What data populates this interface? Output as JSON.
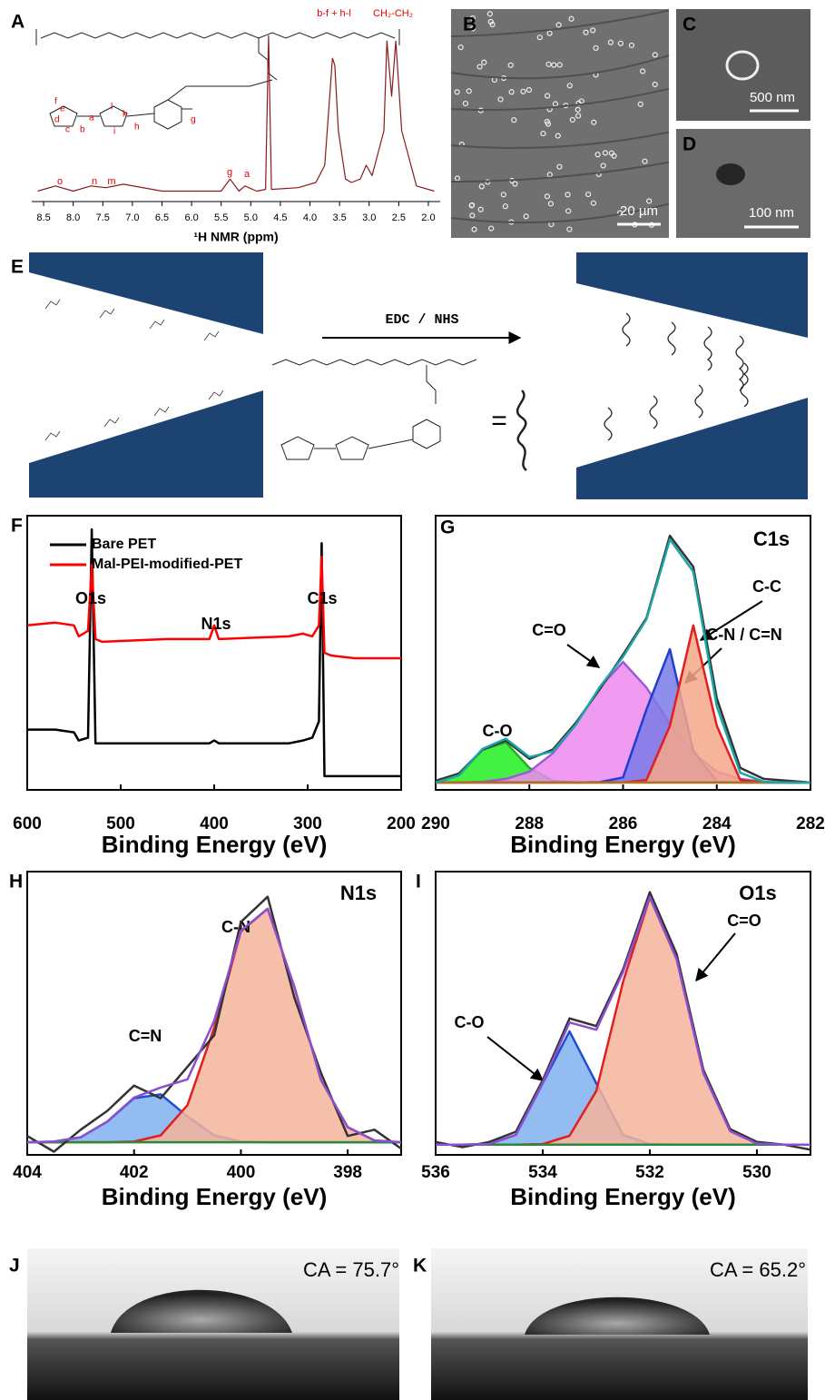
{
  "panel_labels": [
    "A",
    "B",
    "C",
    "D",
    "E",
    "F",
    "G",
    "H",
    "I",
    "J",
    "K"
  ],
  "nmr_structure_labels": [
    "e",
    "d",
    "c",
    "b",
    "a",
    "l",
    "k",
    "i",
    "h",
    "g",
    "f"
  ],
  "micrographs": {
    "scale_bars": [
      "20 µm",
      "500 nm",
      "100 nm"
    ]
  },
  "scheme": {
    "reagent": "EDC / NHS",
    "equals": "="
  },
  "contact_angles": [
    "CA = 75.7°",
    "CA = 65.2°"
  ],
  "chart_data": [
    {
      "type": "line",
      "xlabel": "¹H NMR (ppm)",
      "xlim": [
        8.7,
        1.8
      ],
      "xticks": [
        8.5,
        {
          "value": 8,
          "label": "8.0"
        },
        7.5,
        {
          "value": 7,
          "label": "7.0"
        },
        6.5,
        {
          "value": 6,
          "label": "6.0"
        },
        5.5,
        {
          "value": 5,
          "label": "5.0"
        },
        4.5,
        {
          "value": 4,
          "label": "4.0"
        },
        3.5,
        {
          "value": 3,
          "label": "3.0"
        },
        2.5,
        {
          "value": 2,
          "label": "2.0"
        }
      ],
      "ylim": [
        0,
        100
      ],
      "x": [
        8.6,
        8.3,
        8.0,
        7.7,
        7.45,
        7.15,
        6.5,
        5.5,
        5.35,
        5.2,
        5.1,
        4.9,
        4.75,
        4.7,
        4.65,
        4.2,
        3.9,
        3.75,
        3.62,
        3.58,
        3.52,
        3.4,
        3.3,
        3.15,
        3.05,
        2.95,
        2.75,
        2.7,
        2.62,
        2.55,
        2.45,
        2.2,
        1.9
      ],
      "series": [
        {
          "color": "#8b1a1a",
          "values": [
            5,
            8,
            5,
            8,
            7,
            9,
            5,
            5,
            12,
            5,
            8,
            5,
            6,
            95,
            6,
            7,
            10,
            20,
            82,
            78,
            40,
            12,
            10,
            12,
            20,
            14,
            40,
            92,
            60,
            92,
            40,
            8,
            5
          ]
        }
      ],
      "annotations": [
        "o",
        "n",
        "m",
        "g",
        "a",
        "b-f + h-l",
        "CH₂-CH₂"
      ]
    },
    {
      "type": "line",
      "xlabel": "Binding Energy (eV)",
      "xlim": [
        600,
        200
      ],
      "xticks": [
        600,
        500,
        400,
        300,
        200
      ],
      "ylim": [
        0,
        100
      ],
      "x": [
        600,
        570,
        550,
        545,
        535,
        531,
        527,
        520,
        450,
        405,
        400,
        395,
        320,
        305,
        295,
        288,
        285,
        282,
        275,
        250,
        200
      ],
      "series": [
        {
          "name": "Bare PET",
          "color": "#000000",
          "values": [
            22,
            22,
            21,
            18,
            19,
            95,
            17,
            17,
            17,
            17,
            18,
            17,
            17,
            18,
            19,
            25,
            90,
            5,
            5,
            5,
            5
          ]
        },
        {
          "name": "Mal-PEI-modified-PET",
          "color": "#ff0000",
          "values": [
            60,
            61,
            60,
            56,
            58,
            82,
            55,
            54,
            55,
            55,
            60,
            55,
            56,
            57,
            56,
            60,
            85,
            50,
            49,
            48,
            48
          ]
        }
      ],
      "annotations": [
        "O1s",
        "N1s",
        "C1s"
      ]
    },
    {
      "type": "line",
      "title": "C1s",
      "xlabel": "Binding Energy (eV)",
      "xlim": [
        290,
        282
      ],
      "xticks": [
        290,
        288,
        286,
        284,
        282
      ],
      "ylim": [
        0,
        75
      ],
      "x": [
        290,
        289.5,
        289,
        288.5,
        288,
        287.5,
        287,
        286.5,
        286,
        285.5,
        285,
        284.5,
        284,
        283.5,
        283,
        282.5,
        282
      ],
      "series": [
        {
          "name": "C-O",
          "color": "#20b020",
          "fill": "#22ee22",
          "values": [
            2,
            4,
            11,
            13,
            6,
            2.5,
            2,
            2,
            2,
            2,
            2,
            2,
            2,
            2,
            2,
            2,
            2
          ]
        },
        {
          "name": "C=O",
          "color": "#9c5bd6",
          "fill": "#ee88ee",
          "values": [
            2,
            2,
            2.2,
            3,
            5,
            10,
            18,
            28,
            35,
            28,
            18,
            10,
            5,
            3,
            2.2,
            2,
            2
          ]
        },
        {
          "name": "C-N / C=N",
          "color": "#1f3fcf",
          "fill": "#7a7ae8",
          "values": [
            2,
            2,
            2,
            2,
            2,
            2,
            2,
            2.1,
            3.4,
            22,
            38.5,
            10.7,
            2.3,
            2,
            2,
            2,
            2
          ]
        },
        {
          "name": "C-C",
          "color": "#e02020",
          "fill": "#f5a78a",
          "values": [
            2,
            2,
            2,
            2,
            2,
            2,
            2,
            2,
            2,
            2.7,
            17.5,
            45,
            17.5,
            2.7,
            2,
            2,
            2
          ]
        },
        {
          "color": "#b07020",
          "values": [
            2,
            2,
            2,
            2,
            2,
            2,
            2,
            2,
            2,
            2,
            2,
            2,
            2,
            2,
            2,
            2,
            2
          ]
        },
        {
          "color": "#333333",
          "values": [
            2.5,
            4.5,
            11,
            13.5,
            8.5,
            11,
            18.5,
            27.5,
            37,
            47,
            69.5,
            61,
            25,
            6,
            3,
            2.5,
            2
          ]
        },
        {
          "color": "#1aa6a6",
          "values": [
            2,
            4,
            11.2,
            14,
            9,
            10.5,
            18,
            28.1,
            36.4,
            46.7,
            68.5,
            59.7,
            22.8,
            4.7,
            2.2,
            2,
            2
          ]
        }
      ]
    },
    {
      "type": "line",
      "title": "N1s",
      "xlabel": "Binding Energy (eV)",
      "xlim": [
        404,
        397
      ],
      "xticks": [
        404,
        402,
        400,
        398
      ],
      "ylim": [
        0,
        45
      ],
      "x": [
        404,
        403.5,
        403,
        402.5,
        402,
        401.5,
        401,
        400.5,
        400,
        399.5,
        399,
        398.5,
        398,
        397.5,
        397
      ],
      "series": [
        {
          "name": "C=N",
          "color": "#1f4fcf",
          "fill": "#7fb0f0",
          "values": [
            2,
            2.1,
            2.8,
            5.3,
            9,
            9.6,
            6.1,
            3.1,
            2.1,
            2,
            2,
            2,
            2,
            2,
            2
          ]
        },
        {
          "name": "C-N",
          "color": "#e02020",
          "fill": "#f5b49a",
          "values": [
            2,
            2,
            2,
            2,
            2.1,
            3.1,
            7.9,
            20.2,
            35.5,
            39.1,
            26.7,
            11.9,
            4.4,
            2.3,
            2
          ]
        },
        {
          "color": "#2a8a3a",
          "values": [
            2,
            2,
            2,
            2,
            2,
            2,
            2,
            2,
            2,
            2,
            2,
            2,
            2,
            2,
            2
          ]
        },
        {
          "color": "#333333",
          "values": [
            3,
            0.5,
            4,
            7,
            11,
            9,
            14,
            19,
            37,
            41,
            25,
            13,
            3,
            4,
            1
          ]
        },
        {
          "color": "#8b4fd0",
          "values": [
            2,
            2.1,
            2.8,
            5.3,
            9.1,
            10.7,
            12,
            21.3,
            35.6,
            39.1,
            26.7,
            11.9,
            4.4,
            2.3,
            2
          ]
        }
      ]
    },
    {
      "type": "line",
      "title": "O1s",
      "xlabel": "Binding Energy (eV)",
      "xlim": [
        536,
        529
      ],
      "xticks": [
        536,
        534,
        532,
        530
      ],
      "ylim": [
        0,
        55
      ],
      "x": [
        536,
        535.5,
        535,
        534.5,
        534,
        533.5,
        533,
        532.5,
        532,
        531.5,
        531,
        530.5,
        530,
        529.5,
        529
      ],
      "series": [
        {
          "name": "C-O",
          "color": "#1f4fcf",
          "fill": "#7fb0f0",
          "values": [
            2,
            2,
            2.1,
            3.9,
            13.9,
            24,
            13.9,
            3.9,
            2.1,
            2,
            2,
            2,
            2,
            2,
            2
          ]
        },
        {
          "name": "C=O",
          "color": "#e02020",
          "fill": "#f5b49a",
          "values": [
            2,
            2,
            2,
            2,
            2.1,
            3.7,
            12.4,
            33.6,
            50,
            38,
            15.9,
            4.6,
            2.2,
            2,
            2
          ]
        },
        {
          "color": "#2a8a3a",
          "values": [
            2,
            2,
            2,
            2,
            2,
            2,
            2,
            2,
            2,
            2,
            2,
            2,
            2,
            2,
            2
          ]
        },
        {
          "color": "#333333",
          "values": [
            2.5,
            1.5,
            2.5,
            4.5,
            14.5,
            26.5,
            25,
            36,
            51,
            39,
            16.5,
            5,
            2.5,
            2,
            1
          ]
        },
        {
          "color": "#8b4fd0",
          "values": [
            2,
            2,
            2.1,
            3.9,
            14,
            25.7,
            24.3,
            35.5,
            50.1,
            38,
            15.9,
            4.6,
            2.2,
            2,
            2
          ]
        }
      ]
    }
  ]
}
